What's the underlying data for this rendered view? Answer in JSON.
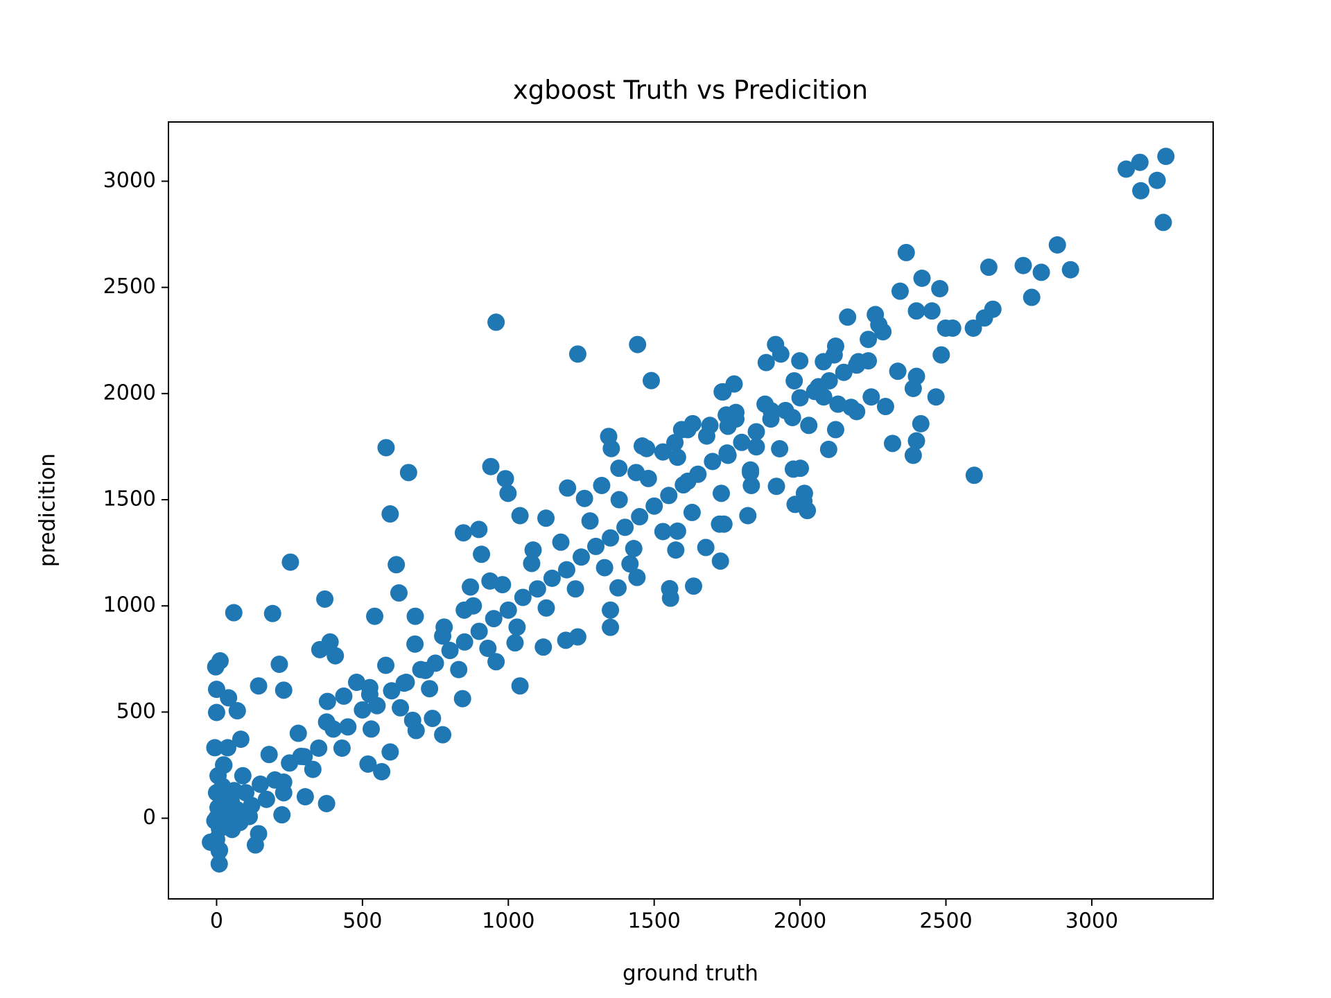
{
  "chart_data": {
    "type": "scatter",
    "title": "xgboost Truth vs Predicition",
    "x_label": "ground truth",
    "y_label": "predicition",
    "color": "#1f77b4",
    "xlim": [
      -165,
      3416
    ],
    "ylim": [
      -380,
      3279
    ],
    "xticks": [
      0,
      500,
      1000,
      1500,
      2000,
      2500,
      3000
    ],
    "yticks": [
      0,
      500,
      1000,
      1500,
      2000,
      2500,
      3000
    ],
    "x": [
      3118,
      3165,
      3254,
      3224,
      3168,
      3245,
      2882,
      2765,
      2827,
      2927,
      2794,
      2647,
      2364,
      2479,
      2418,
      2343,
      2661,
      2632,
      2594,
      2523,
      2499,
      2452,
      2399,
      2258,
      2163,
      2284,
      2484,
      2466,
      2293,
      2597,
      2414,
      2399,
      2388,
      2317,
      2399,
      2388,
      2335,
      2244,
      2194,
      2117,
      1999,
      1916,
      1934,
      1884,
      1774,
      1736,
      1780,
      1753,
      1615,
      1571,
      1443,
      1490,
      1238,
      958,
      581,
      658,
      940,
      990,
      999,
      595,
      616,
      625,
      253,
      371,
      59,
      192,
      12,
      -3,
      0,
      0,
      41,
      71,
      144,
      215,
      230,
      389,
      354,
      407,
      542,
      681,
      525,
      519,
      566,
      595,
      672,
      684,
      740,
      775,
      843,
      846,
      899,
      908,
      870,
      1040,
      958,
      1023,
      1197,
      1120,
      1238,
      1350,
      1350,
      1376,
      1441,
      1417,
      1553,
      1556,
      1635,
      1574,
      1677,
      1727,
      1724,
      1739,
      1580,
      1344,
      1353,
      1459,
      1474,
      1530,
      1594,
      1632,
      1691,
      1747,
      1733,
      1901,
      1974,
      1977,
      2015,
      2025,
      2013,
      1983,
      1919,
      2001,
      2098,
      2122,
      2063,
      2081,
      2175,
      2194,
      2234,
      2122,
      2270,
      2234,
      1830,
      1753,
      1821,
      1850,
      1833,
      1615,
      1438,
      1379,
      1320,
      1261,
      1203,
      1129,
      1040,
      1085,
      937,
      849,
      775,
      716,
      643,
      525,
      436,
      377,
      289,
      230,
      171,
      112,
      53,
      9,
      9,
      133,
      144,
      224,
      377,
      304,
      24,
      -6,
      -21,
      24,
      38,
      83,
      -6,
      100,
      150,
      200,
      250,
      300,
      350,
      400,
      450,
      500,
      550,
      600,
      650,
      700,
      750,
      800,
      850,
      900,
      950,
      1000,
      1050,
      1100,
      1150,
      1200,
      1250,
      1300,
      1350,
      1400,
      1450,
      1500,
      1550,
      1600,
      1650,
      1700,
      1750,
      1800,
      1850,
      1900,
      1950,
      2000,
      2050,
      2100,
      2150,
      2200,
      120,
      180,
      230,
      280,
      330,
      380,
      430,
      480,
      530,
      580,
      630,
      680,
      730,
      780,
      830,
      880,
      930,
      980,
      1030,
      1080,
      1130,
      1180,
      1230,
      1280,
      1330,
      1380,
      1430,
      1480,
      1530,
      1580,
      1630,
      1680,
      1730,
      1780,
      1830,
      1880,
      1930,
      1980,
      2030,
      2080,
      2130,
      0,
      5,
      10,
      15,
      20,
      0,
      5,
      30,
      40,
      50,
      60,
      70,
      80,
      90,
      0,
      10,
      25
    ],
    "y": [
      3057,
      3089,
      3117,
      3004,
      2955,
      2806,
      2700,
      2603,
      2571,
      2583,
      2453,
      2595,
      2664,
      2494,
      2543,
      2482,
      2397,
      2356,
      2308,
      2308,
      2308,
      2389,
      2389,
      2372,
      2360,
      2291,
      2182,
      1984,
      1939,
      1615,
      1858,
      1777,
      1709,
      1765,
      2081,
      2024,
      2105,
      1984,
      1915,
      2182,
      2154,
      2231,
      2186,
      2146,
      2045,
      2008,
      1911,
      1846,
      1830,
      1769,
      2231,
      2061,
      2186,
      2336,
      1745,
      1628,
      1656,
      1599,
      1530,
      1433,
      1194,
      1061,
      1206,
      1032,
      968,
      964,
      741,
      713,
      607,
      498,
      567,
      506,
      623,
      725,
      603,
      830,
      794,
      765,
      951,
      951,
      583,
      255,
      219,
      312,
      461,
      413,
      470,
      393,
      563,
      1344,
      1360,
      1243,
      1089,
      623,
      737,
      826,
      838,
      806,
      854,
      980,
      899,
      1085,
      1134,
      1198,
      1081,
      1036,
      1093,
      1263,
      1275,
      1211,
      1385,
      1385,
      1352,
      1798,
      1741,
      1753,
      1741,
      1725,
      1830,
      1858,
      1850,
      1899,
      2008,
      1919,
      1887,
      1644,
      1530,
      1449,
      1494,
      1478,
      1563,
      1648,
      1737,
      1830,
      2032,
      1984,
      1935,
      2134,
      2154,
      2223,
      2324,
      2255,
      1628,
      1709,
      1425,
      1749,
      1567,
      1587,
      1628,
      1648,
      1567,
      1506,
      1555,
      1413,
      1425,
      1263,
      1117,
      980,
      858,
      696,
      636,
      615,
      575,
      453,
      291,
      170,
      89,
      8,
      -53,
      -154,
      -215,
      -126,
      -73,
      16,
      69,
      101,
      69,
      -12,
      -113,
      251,
      332,
      372,
      332,
      120,
      160,
      180,
      260,
      290,
      330,
      420,
      430,
      510,
      530,
      600,
      640,
      700,
      730,
      790,
      830,
      880,
      940,
      980,
      1040,
      1080,
      1130,
      1170,
      1230,
      1280,
      1320,
      1370,
      1420,
      1470,
      1520,
      1570,
      1620,
      1680,
      1720,
      1770,
      1820,
      1880,
      1920,
      1980,
      2010,
      2060,
      2100,
      2150,
      60,
      300,
      120,
      400,
      230,
      550,
      330,
      640,
      420,
      720,
      520,
      820,
      610,
      900,
      700,
      1000,
      800,
      1100,
      900,
      1200,
      990,
      1300,
      1080,
      1400,
      1180,
      1500,
      1270,
      1600,
      1350,
      1700,
      1440,
      1800,
      1530,
      1880,
      1640,
      1950,
      1740,
      2060,
      1850,
      2150,
      1950,
      0,
      50,
      -50,
      100,
      150,
      -100,
      200,
      20,
      -30,
      80,
      130,
      40,
      -20,
      200,
      120,
      -150,
      250
    ]
  }
}
